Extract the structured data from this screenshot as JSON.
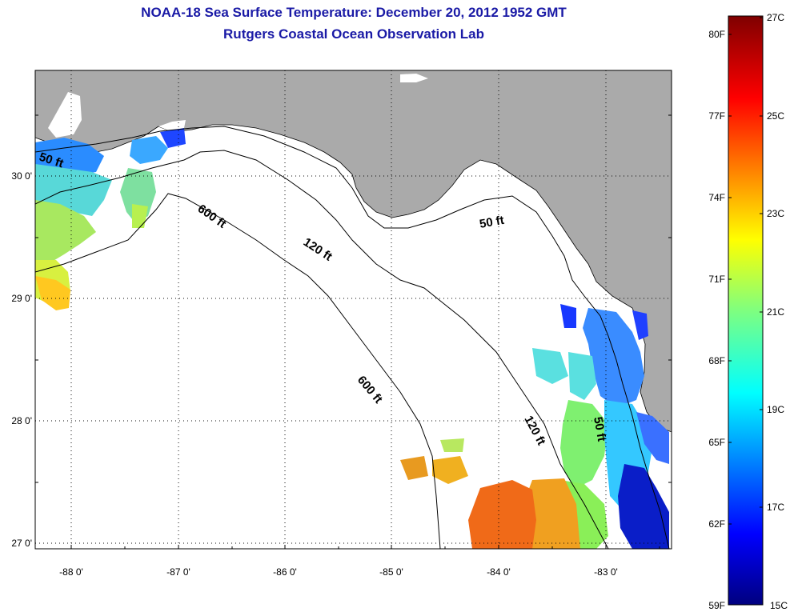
{
  "title": "NOAA-18 Sea Surface Temperature:  December 20, 2012 1952 GMT",
  "subtitle": "Rutgers Coastal Ocean Observation Lab",
  "axes": {
    "x_ticks": [
      "-88 0'",
      "-87 0'",
      "-86 0'",
      "-85 0'",
      "-84 0'",
      "-83 0'"
    ],
    "y_ticks": [
      "30 0'",
      "29 0'",
      "28 0'",
      "27 0'"
    ]
  },
  "contours": {
    "label_50_west": "50 ft",
    "label_600_north": "600 ft",
    "label_120_north": "120 ft",
    "label_50_north": "50 ft",
    "label_600_south": "600 ft",
    "label_120_south": "120 ft",
    "label_50_east": "50 ft"
  },
  "colorbar": {
    "fahrenheit": [
      "80F",
      "77F",
      "74F",
      "71F",
      "68F",
      "65F",
      "62F",
      "59F"
    ],
    "celsius": [
      "27C",
      "25C",
      "23C",
      "21C",
      "19C",
      "17C",
      "15C"
    ]
  },
  "colors": {
    "land": "#aaaaaa",
    "title": "#1a1aa6"
  }
}
